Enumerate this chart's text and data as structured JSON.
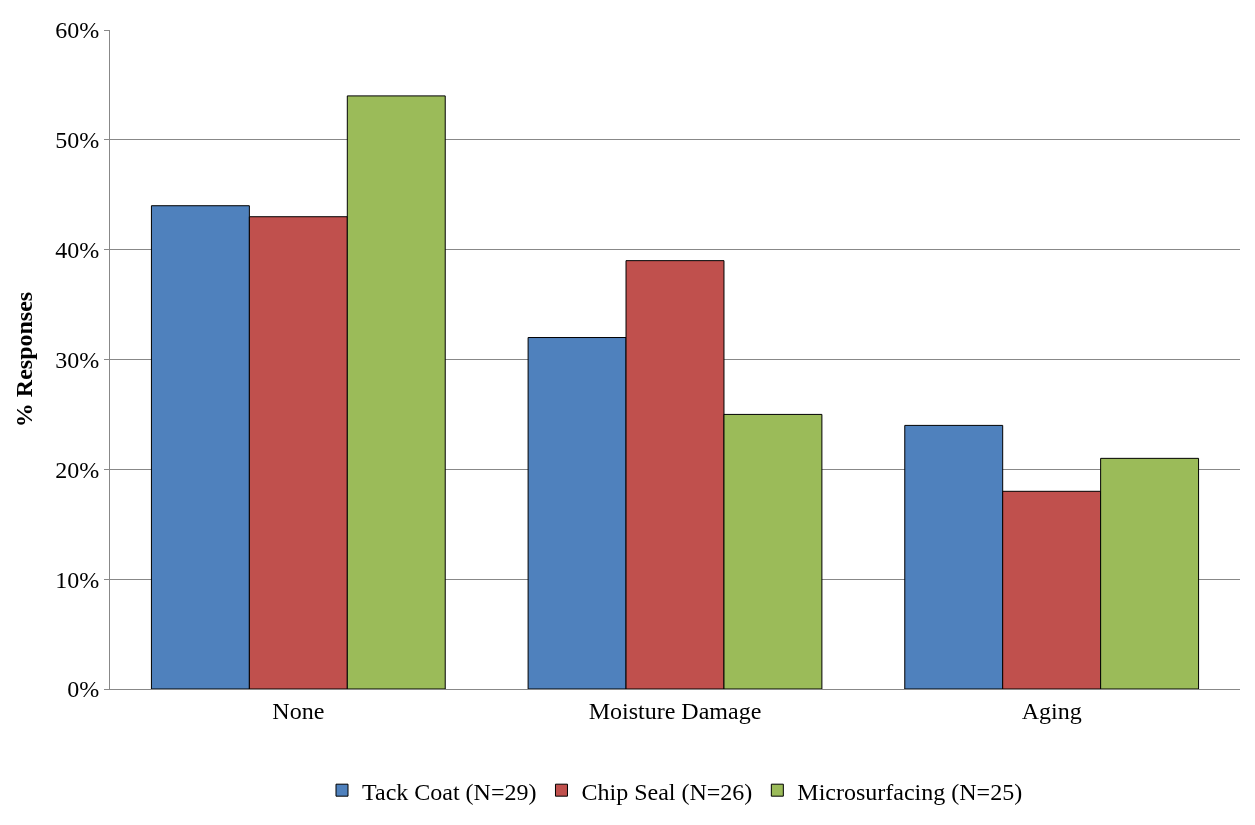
{
  "chart_data": {
    "type": "bar",
    "ylabel": "% Responses",
    "categories": [
      "None",
      "Moisture Damage",
      "Aging"
    ],
    "series": [
      {
        "name": "Tack Coat (N=29)",
        "color": "#4f81bd",
        "values": [
          44,
          32,
          24
        ]
      },
      {
        "name": "Chip Seal (N=26)",
        "color": "#c0504d",
        "values": [
          43,
          39,
          18
        ]
      },
      {
        "name": "Microsurfacing (N=25)",
        "color": "#9bbb59",
        "values": [
          54,
          25,
          21
        ]
      }
    ],
    "ylim": [
      0,
      60
    ],
    "yticks": [
      {
        "value": 0,
        "label": "0%"
      },
      {
        "value": 10,
        "label": "10%"
      },
      {
        "value": 20,
        "label": "20%"
      },
      {
        "value": 30,
        "label": "30%"
      },
      {
        "value": 40,
        "label": "40%"
      },
      {
        "value": 50,
        "label": "50%"
      },
      {
        "value": 60,
        "label": "60%"
      }
    ],
    "grid": "y",
    "legend": "bottom"
  }
}
